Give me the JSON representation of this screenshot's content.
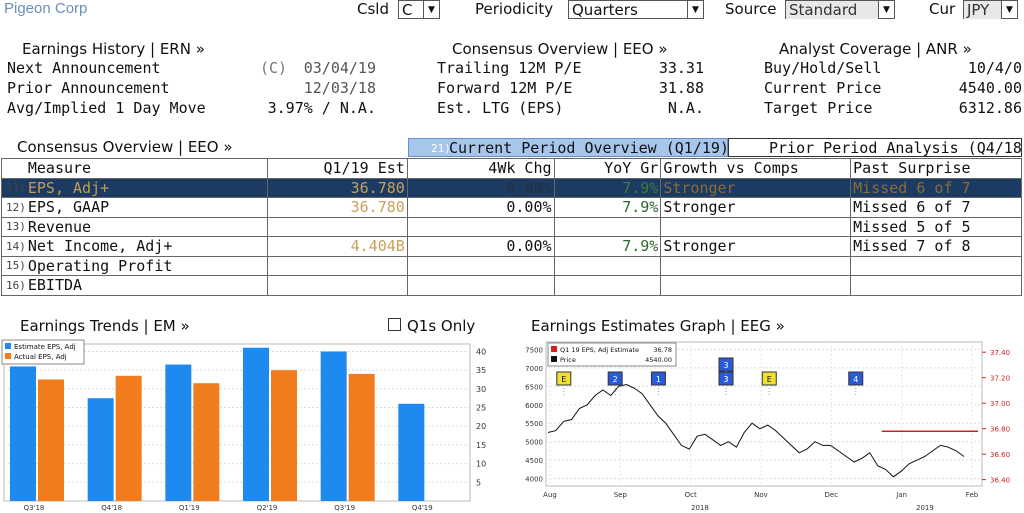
{
  "toolbar": {
    "company": "Pigeon Corp",
    "csld_label": "Csld",
    "csld_value": "C",
    "periodicity_label": "Periodicity",
    "periodicity_value": "Quarters",
    "source_label": "Source",
    "source_value": "Standard",
    "cur_label": "Cur",
    "cur_value": "JPY"
  },
  "earnings_history": {
    "header": "Earnings History | ERN »",
    "rows": [
      {
        "label": "Next Announcement",
        "prefix": "(C)",
        "value": "03/04/19"
      },
      {
        "label": "Prior Announcement",
        "prefix": "",
        "value": "12/03/18"
      },
      {
        "label": "Avg/Implied 1 Day Move",
        "prefix": "",
        "value": "3.97% / N.A."
      }
    ]
  },
  "consensus_overview_summary": {
    "header": "Consensus Overview | EEO »",
    "rows": [
      {
        "label": "Trailing 12M P/E",
        "value": "33.31"
      },
      {
        "label": "Forward 12M P/E",
        "value": "31.88"
      },
      {
        "label": "Est. LTG (EPS)",
        "value": "N.A."
      }
    ]
  },
  "analyst_coverage": {
    "header": "Analyst Coverage | ANR »",
    "rows": [
      {
        "label": "Buy/Hold/Sell",
        "value": "10/4/0"
      },
      {
        "label": "Current Price",
        "value": "4540.00"
      },
      {
        "label": "Target Price",
        "value": "6312.86"
      }
    ]
  },
  "consensus_table": {
    "header": "Consensus Overview | EEO »",
    "tab_current_num": "21)",
    "tab_current": "Current Period Overview (Q1/19)",
    "tab_prior": "Prior Period Analysis (Q4/18)",
    "columns": [
      "Measure",
      "Q1/19 Est",
      "4Wk Chg",
      "YoY Gr",
      "Growth vs Comps",
      "Past Surprise"
    ],
    "rows": [
      {
        "num": "11)",
        "measure": "EPS, Adj+",
        "est": "36.780",
        "chg": "0.00%",
        "yoy": "7.9%",
        "growth": "Stronger",
        "surprise": "Missed 6 of 7"
      },
      {
        "num": "12)",
        "measure": "EPS, GAAP",
        "est": "36.780",
        "chg": "0.00%",
        "yoy": "7.9%",
        "growth": "Stronger",
        "surprise": "Missed 6 of 7"
      },
      {
        "num": "13)",
        "measure": "Revenue",
        "est": "",
        "chg": "",
        "yoy": "",
        "growth": "",
        "surprise": "Missed 5 of 5"
      },
      {
        "num": "14)",
        "measure": "Net Income, Adj+",
        "est": "4.404B",
        "chg": "0.00%",
        "yoy": "7.9%",
        "growth": "Stronger",
        "surprise": "Missed 7 of 8"
      },
      {
        "num": "15)",
        "measure": "Operating Profit",
        "est": "",
        "chg": "",
        "yoy": "",
        "growth": "",
        "surprise": ""
      },
      {
        "num": "16)",
        "measure": "EBITDA",
        "est": "",
        "chg": "",
        "yoy": "",
        "growth": "",
        "surprise": ""
      }
    ]
  },
  "earnings_trends": {
    "header": "Earnings Trends | EM »",
    "checkbox_label": "Q1s Only"
  },
  "earnings_estimates": {
    "header": "Earnings Estimates Graph | EEG »"
  },
  "chart_data": [
    {
      "type": "bar",
      "categories": [
        "Q3'18",
        "Q4'18",
        "Q1'19",
        "Q2'19",
        "Q3'19",
        "Q4'19"
      ],
      "series": [
        {
          "name": "Estimate EPS, Adj",
          "color": "#1e8af0",
          "values": [
            36.0,
            27.5,
            36.5,
            41.0,
            40.0,
            26.0
          ]
        },
        {
          "name": "Actual EPS, Adj",
          "color": "#f07c1e",
          "values": [
            32.5,
            33.5,
            31.5,
            35.0,
            34.0,
            null
          ]
        }
      ],
      "ylim": [
        0,
        42
      ],
      "yticks": [
        5,
        10,
        15,
        20,
        25,
        30,
        35,
        40
      ],
      "legend": "top-left",
      "grid": true
    },
    {
      "type": "line",
      "legend_items": [
        {
          "name": "Q1 19 EPS, Adj Estimate",
          "value": "36.78",
          "color": "#d42020"
        },
        {
          "name": "Price",
          "value": "4540.00",
          "color": "#111111"
        }
      ],
      "x_labels": [
        "Aug",
        "Sep",
        "Oct",
        "Nov",
        "Dec",
        "Jan",
        "Feb"
      ],
      "year_labels": [
        "2018",
        "2019"
      ],
      "left_axis": {
        "ticks": [
          4000,
          4500,
          5000,
          5500,
          6000,
          6500,
          7000,
          7500
        ],
        "range": [
          3800,
          7700
        ]
      },
      "right_axis": {
        "ticks": [
          "36.40",
          "36.60",
          "36.80",
          "37.00",
          "37.20",
          "37.40"
        ],
        "range": [
          36.35,
          37.48
        ]
      },
      "price_series": [
        5250,
        5300,
        5550,
        5600,
        5900,
        6000,
        6250,
        6400,
        6250,
        6500,
        6550,
        6450,
        6300,
        6000,
        5700,
        5500,
        5200,
        4900,
        4800,
        5150,
        5200,
        5050,
        4900,
        5000,
        4850,
        5250,
        5500,
        5350,
        5450,
        5300,
        5100,
        4900,
        4700,
        4800,
        5000,
        4900,
        4900,
        4750,
        4600,
        4450,
        4550,
        4700,
        4350,
        4250,
        4050,
        4200,
        4400,
        4500,
        4600,
        4750,
        4900,
        4850,
        4750,
        4600
      ],
      "estimate_line": {
        "value": 36.78,
        "start_fraction": 0.77
      },
      "event_markers": [
        {
          "label": "E",
          "color": "#f0e030",
          "x_fraction": 0.04
        },
        {
          "label": "2",
          "color": "#2a5ad8",
          "x_fraction": 0.23
        },
        {
          "label": "1",
          "color": "#2a5ad8",
          "x_fraction": 0.39
        },
        {
          "label": "3",
          "color": "#2a5ad8",
          "x_fraction": 0.64,
          "stack": 2
        },
        {
          "label": "E",
          "color": "#f0e030",
          "x_fraction": 0.8
        },
        {
          "label": "4",
          "color": "#2a5ad8",
          "x_fraction": 1.12
        }
      ],
      "grid": true
    }
  ]
}
